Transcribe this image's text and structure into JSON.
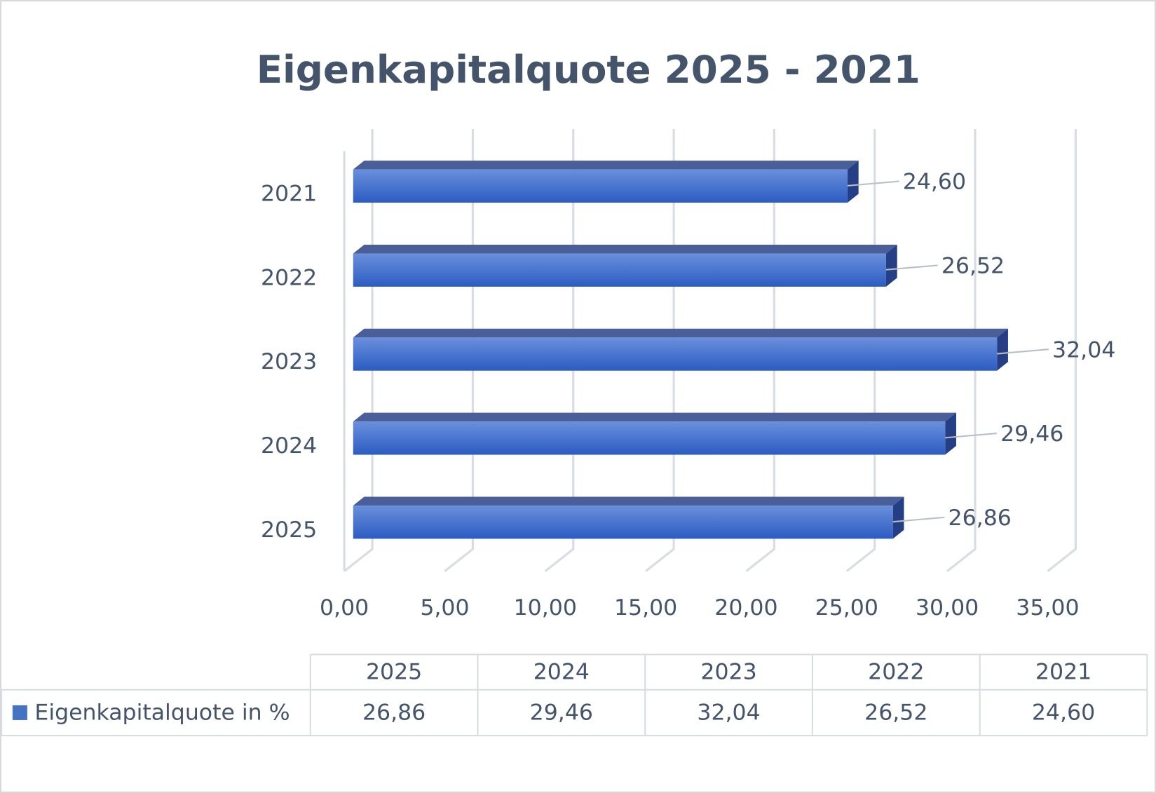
{
  "chart_data": {
    "type": "bar3d_horizontal",
    "title": "Eigenkapitalquote 2025 - 2021",
    "categories": [
      "2025",
      "2024",
      "2023",
      "2022",
      "2021"
    ],
    "series": [
      {
        "name": "Eigenkapitalquote in %",
        "color": "#4472c4",
        "values": [
          26.86,
          29.46,
          32.04,
          26.52,
          24.6
        ],
        "value_labels": [
          "26,86",
          "29,46",
          "32,04",
          "26,52",
          "24,60"
        ]
      }
    ],
    "xlim": [
      0,
      35
    ],
    "xticks": [
      {
        "value": 0,
        "label": "0,00"
      },
      {
        "value": 5,
        "label": "5,00"
      },
      {
        "value": 10,
        "label": "10,00"
      },
      {
        "value": 15,
        "label": "15,00"
      },
      {
        "value": 20,
        "label": "20,00"
      },
      {
        "value": 25,
        "label": "25,00"
      },
      {
        "value": 30,
        "label": "30,00"
      },
      {
        "value": 35,
        "label": "35,00"
      }
    ],
    "grid": true,
    "data_table": true
  }
}
